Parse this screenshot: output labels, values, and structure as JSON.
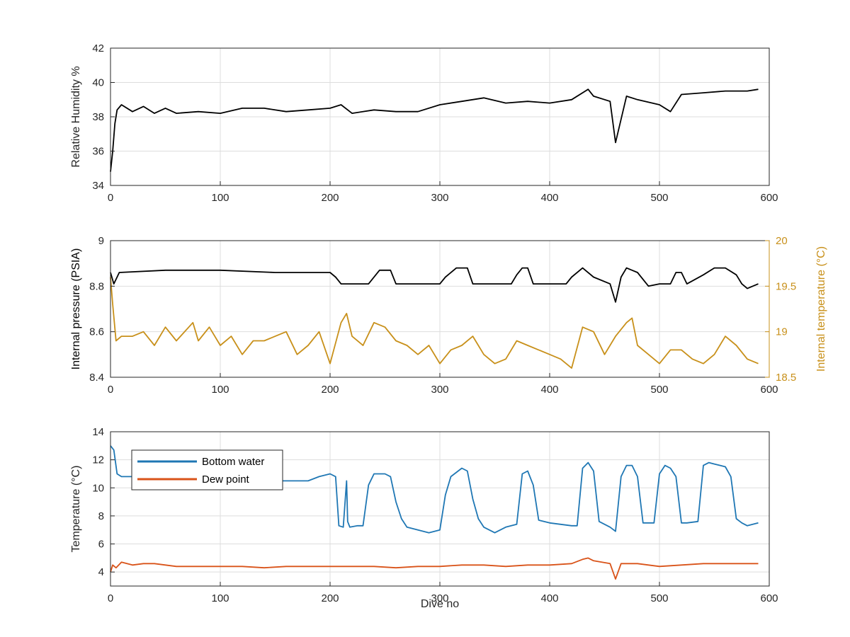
{
  "colors": {
    "black": "#000000",
    "humidity": "#000000",
    "pressure": "#000000",
    "internal_temp": "#c8901a",
    "bottom_water": "#1f77b4",
    "dew_point": "#d95319",
    "grid": "#dddddd",
    "tick_text": "#262626"
  },
  "chart_data": [
    {
      "type": "line",
      "xlabel": "",
      "ylabel": "Relative Humidity %",
      "xlim": [
        0,
        600
      ],
      "ylim": [
        34,
        42
      ],
      "xticks": [
        "0",
        "100",
        "200",
        "300",
        "400",
        "500",
        "600"
      ],
      "yticks": [
        "34",
        "36",
        "38",
        "40",
        "42"
      ],
      "grid": true,
      "series": [
        {
          "x": [
            0,
            2,
            4,
            6,
            10,
            20,
            30,
            40,
            50,
            60,
            80,
            100,
            120,
            140,
            160,
            180,
            200,
            210,
            220,
            240,
            260,
            280,
            300,
            320,
            340,
            360,
            380,
            400,
            420,
            435,
            440,
            455,
            460,
            470,
            480,
            500,
            510,
            520,
            540,
            560,
            580,
            590
          ],
          "values": [
            34.8,
            36.0,
            37.6,
            38.4,
            38.7,
            38.3,
            38.6,
            38.2,
            38.5,
            38.2,
            38.3,
            38.2,
            38.5,
            38.5,
            38.3,
            38.4,
            38.5,
            38.7,
            38.2,
            38.4,
            38.3,
            38.3,
            38.7,
            38.9,
            39.1,
            38.8,
            38.9,
            38.8,
            39.0,
            39.6,
            39.2,
            38.9,
            36.5,
            39.2,
            39.0,
            38.7,
            38.3,
            39.3,
            39.4,
            39.5,
            39.5,
            39.6
          ]
        }
      ]
    },
    {
      "type": "line",
      "xlabel": "",
      "ylabel": "Internal pressure (PSIA)",
      "y2label": "Internal temperature (°C)",
      "xlim": [
        0,
        600
      ],
      "ylim": [
        8.4,
        9.0
      ],
      "y2lim": [
        18.5,
        20
      ],
      "xticks": [
        "0",
        "100",
        "200",
        "300",
        "400",
        "500",
        "600"
      ],
      "yticks": [
        "8.4",
        "8.6",
        "8.8",
        "9"
      ],
      "y2ticks": [
        "18.5",
        "19",
        "19.5",
        "20"
      ],
      "grid": true,
      "series": [
        {
          "x": [
            0,
            3,
            8,
            50,
            100,
            150,
            200,
            205,
            210,
            220,
            235,
            245,
            255,
            260,
            300,
            305,
            315,
            325,
            330,
            365,
            370,
            375,
            380,
            385,
            415,
            420,
            430,
            440,
            455,
            460,
            465,
            470,
            480,
            490,
            500,
            510,
            515,
            520,
            525,
            540,
            550,
            560,
            570,
            575,
            580,
            590
          ],
          "values": [
            8.86,
            8.81,
            8.86,
            8.87,
            8.87,
            8.86,
            8.86,
            8.84,
            8.81,
            8.81,
            8.81,
            8.87,
            8.87,
            8.81,
            8.81,
            8.84,
            8.88,
            8.88,
            8.81,
            8.81,
            8.85,
            8.88,
            8.88,
            8.81,
            8.81,
            8.84,
            8.88,
            8.84,
            8.81,
            8.73,
            8.84,
            8.88,
            8.86,
            8.8,
            8.81,
            8.81,
            8.86,
            8.86,
            8.81,
            8.85,
            8.88,
            8.88,
            8.85,
            8.81,
            8.79,
            8.81
          ]
        },
        {
          "axis": "right",
          "x": [
            0,
            2,
            5,
            10,
            20,
            30,
            40,
            50,
            60,
            75,
            80,
            90,
            100,
            110,
            120,
            130,
            140,
            150,
            160,
            170,
            180,
            190,
            200,
            210,
            215,
            220,
            230,
            240,
            250,
            260,
            270,
            280,
            290,
            300,
            310,
            320,
            330,
            340,
            350,
            360,
            370,
            380,
            390,
            400,
            410,
            420,
            430,
            440,
            450,
            460,
            470,
            475,
            480,
            490,
            500,
            510,
            520,
            530,
            540,
            550,
            560,
            570,
            580,
            590
          ],
          "values": [
            19.6,
            19.3,
            18.9,
            18.95,
            18.95,
            19.0,
            18.85,
            19.05,
            18.9,
            19.1,
            18.9,
            19.05,
            18.85,
            18.95,
            18.75,
            18.9,
            18.9,
            18.95,
            19.0,
            18.75,
            18.85,
            19.0,
            18.65,
            19.1,
            19.2,
            18.95,
            18.85,
            19.1,
            19.05,
            18.9,
            18.85,
            18.75,
            18.85,
            18.65,
            18.8,
            18.85,
            18.95,
            18.75,
            18.65,
            18.7,
            18.9,
            18.85,
            18.8,
            18.75,
            18.7,
            18.6,
            19.05,
            19.0,
            18.75,
            18.95,
            19.1,
            19.15,
            18.85,
            18.75,
            18.65,
            18.8,
            18.8,
            18.7,
            18.65,
            18.75,
            18.95,
            18.85,
            18.7,
            18.65
          ]
        }
      ]
    },
    {
      "type": "line",
      "xlabel": "Dive no",
      "ylabel": "Temperature (°C)",
      "xlim": [
        0,
        600
      ],
      "ylim": [
        3,
        14
      ],
      "xticks": [
        "0",
        "100",
        "200",
        "300",
        "400",
        "500",
        "600"
      ],
      "yticks": [
        "4",
        "6",
        "8",
        "10",
        "12",
        "14"
      ],
      "grid": true,
      "legend": "top-left",
      "series": [
        {
          "name": "Bottom water",
          "x": [
            0,
            3,
            6,
            10,
            20,
            40,
            60,
            80,
            100,
            120,
            140,
            160,
            180,
            190,
            200,
            205,
            208,
            212,
            215,
            216,
            218,
            225,
            230,
            235,
            240,
            250,
            255,
            260,
            265,
            270,
            280,
            290,
            300,
            305,
            310,
            320,
            325,
            330,
            335,
            340,
            350,
            360,
            370,
            375,
            380,
            385,
            390,
            400,
            410,
            420,
            425,
            430,
            435,
            440,
            445,
            455,
            460,
            465,
            470,
            475,
            480,
            485,
            495,
            500,
            505,
            510,
            515,
            520,
            525,
            535,
            540,
            545,
            550,
            560,
            565,
            570,
            575,
            580,
            590
          ],
          "values": [
            13.0,
            12.7,
            11.0,
            10.8,
            10.8,
            10.8,
            10.7,
            10.6,
            10.5,
            10.5,
            10.5,
            10.5,
            10.5,
            10.8,
            11.0,
            10.8,
            7.3,
            7.2,
            10.5,
            7.6,
            7.2,
            7.3,
            7.3,
            10.2,
            11.0,
            11.0,
            10.8,
            9.0,
            7.8,
            7.2,
            7.0,
            6.8,
            7.0,
            9.5,
            10.8,
            11.4,
            11.2,
            9.2,
            7.8,
            7.2,
            6.8,
            7.2,
            7.4,
            11.0,
            11.2,
            10.2,
            7.7,
            7.5,
            7.4,
            7.3,
            7.3,
            11.4,
            11.8,
            11.2,
            7.6,
            7.2,
            6.9,
            10.8,
            11.6,
            11.6,
            10.8,
            7.5,
            7.5,
            11.0,
            11.6,
            11.4,
            10.8,
            7.5,
            7.5,
            7.6,
            11.6,
            11.8,
            11.7,
            11.5,
            10.8,
            7.8,
            7.5,
            7.3,
            7.5
          ]
        },
        {
          "name": "Dew point",
          "x": [
            0,
            2,
            5,
            10,
            20,
            30,
            40,
            60,
            80,
            100,
            120,
            140,
            160,
            180,
            200,
            220,
            240,
            260,
            280,
            300,
            320,
            340,
            360,
            380,
            400,
            420,
            430,
            435,
            440,
            455,
            460,
            465,
            480,
            500,
            520,
            540,
            560,
            580,
            590
          ],
          "values": [
            4.0,
            4.5,
            4.3,
            4.7,
            4.5,
            4.6,
            4.6,
            4.4,
            4.4,
            4.4,
            4.4,
            4.3,
            4.4,
            4.4,
            4.4,
            4.4,
            4.4,
            4.3,
            4.4,
            4.4,
            4.5,
            4.5,
            4.4,
            4.5,
            4.5,
            4.6,
            4.9,
            5.0,
            4.8,
            4.6,
            3.5,
            4.6,
            4.6,
            4.4,
            4.5,
            4.6,
            4.6,
            4.6,
            4.6
          ]
        }
      ]
    }
  ]
}
